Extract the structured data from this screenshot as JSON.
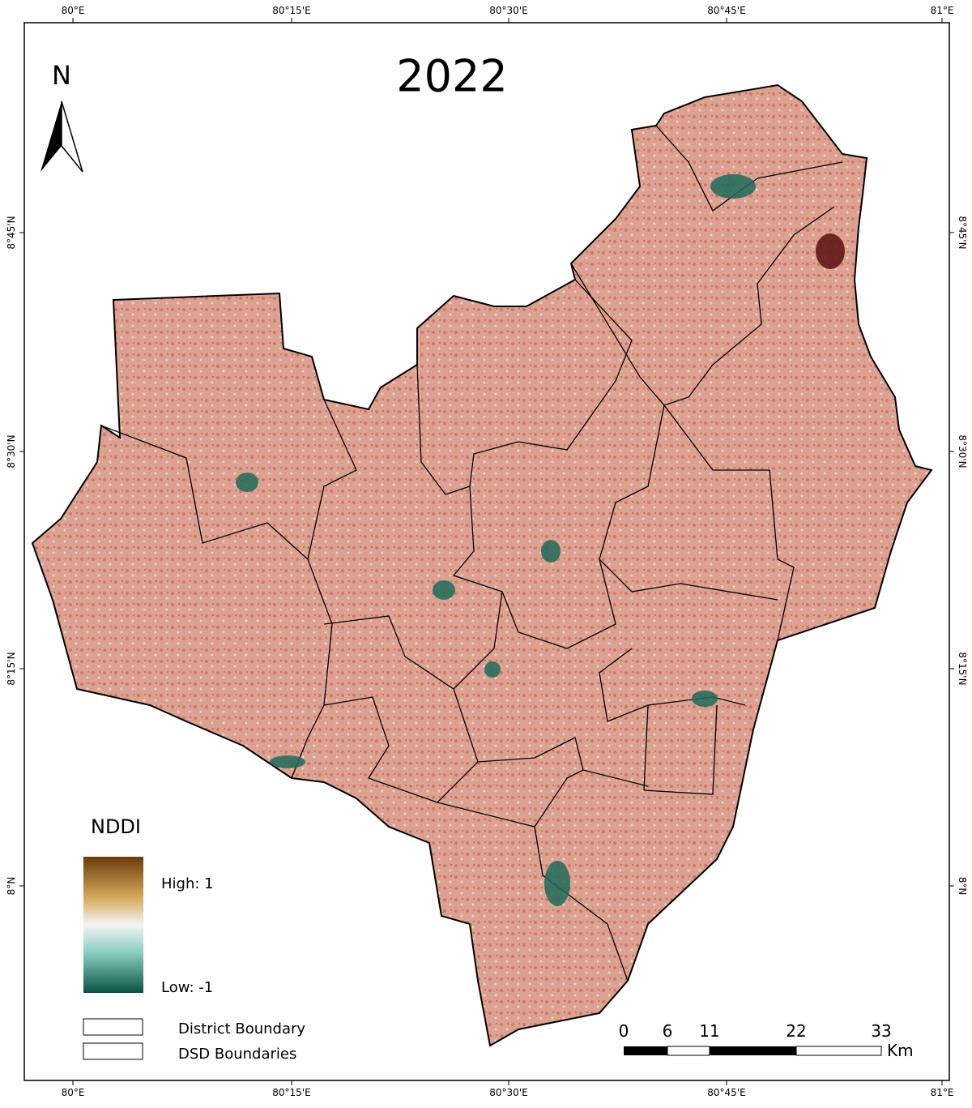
{
  "title": "2022",
  "north": "N",
  "axes": {
    "top": [
      "80°E",
      "80°15'E",
      "80°30'E",
      "80°45'E",
      "81°E"
    ],
    "bottom": [
      "80°E",
      "80°15'E",
      "80°30'E",
      "80°45'E",
      "81°E"
    ],
    "left": [
      "8°45'N",
      "8°30'N",
      "8°15'N",
      "8°N"
    ],
    "right": [
      "8°45'N",
      "8°30'N",
      "8°15'N",
      "8°N"
    ]
  },
  "legend": {
    "title": "NDDI",
    "high": "High: 1",
    "low": "Low: -1",
    "items": [
      "District Boundary",
      "DSD Boundaries"
    ]
  },
  "scale": {
    "ticks": [
      0,
      6,
      11,
      22,
      33
    ],
    "unit": "Km"
  }
}
